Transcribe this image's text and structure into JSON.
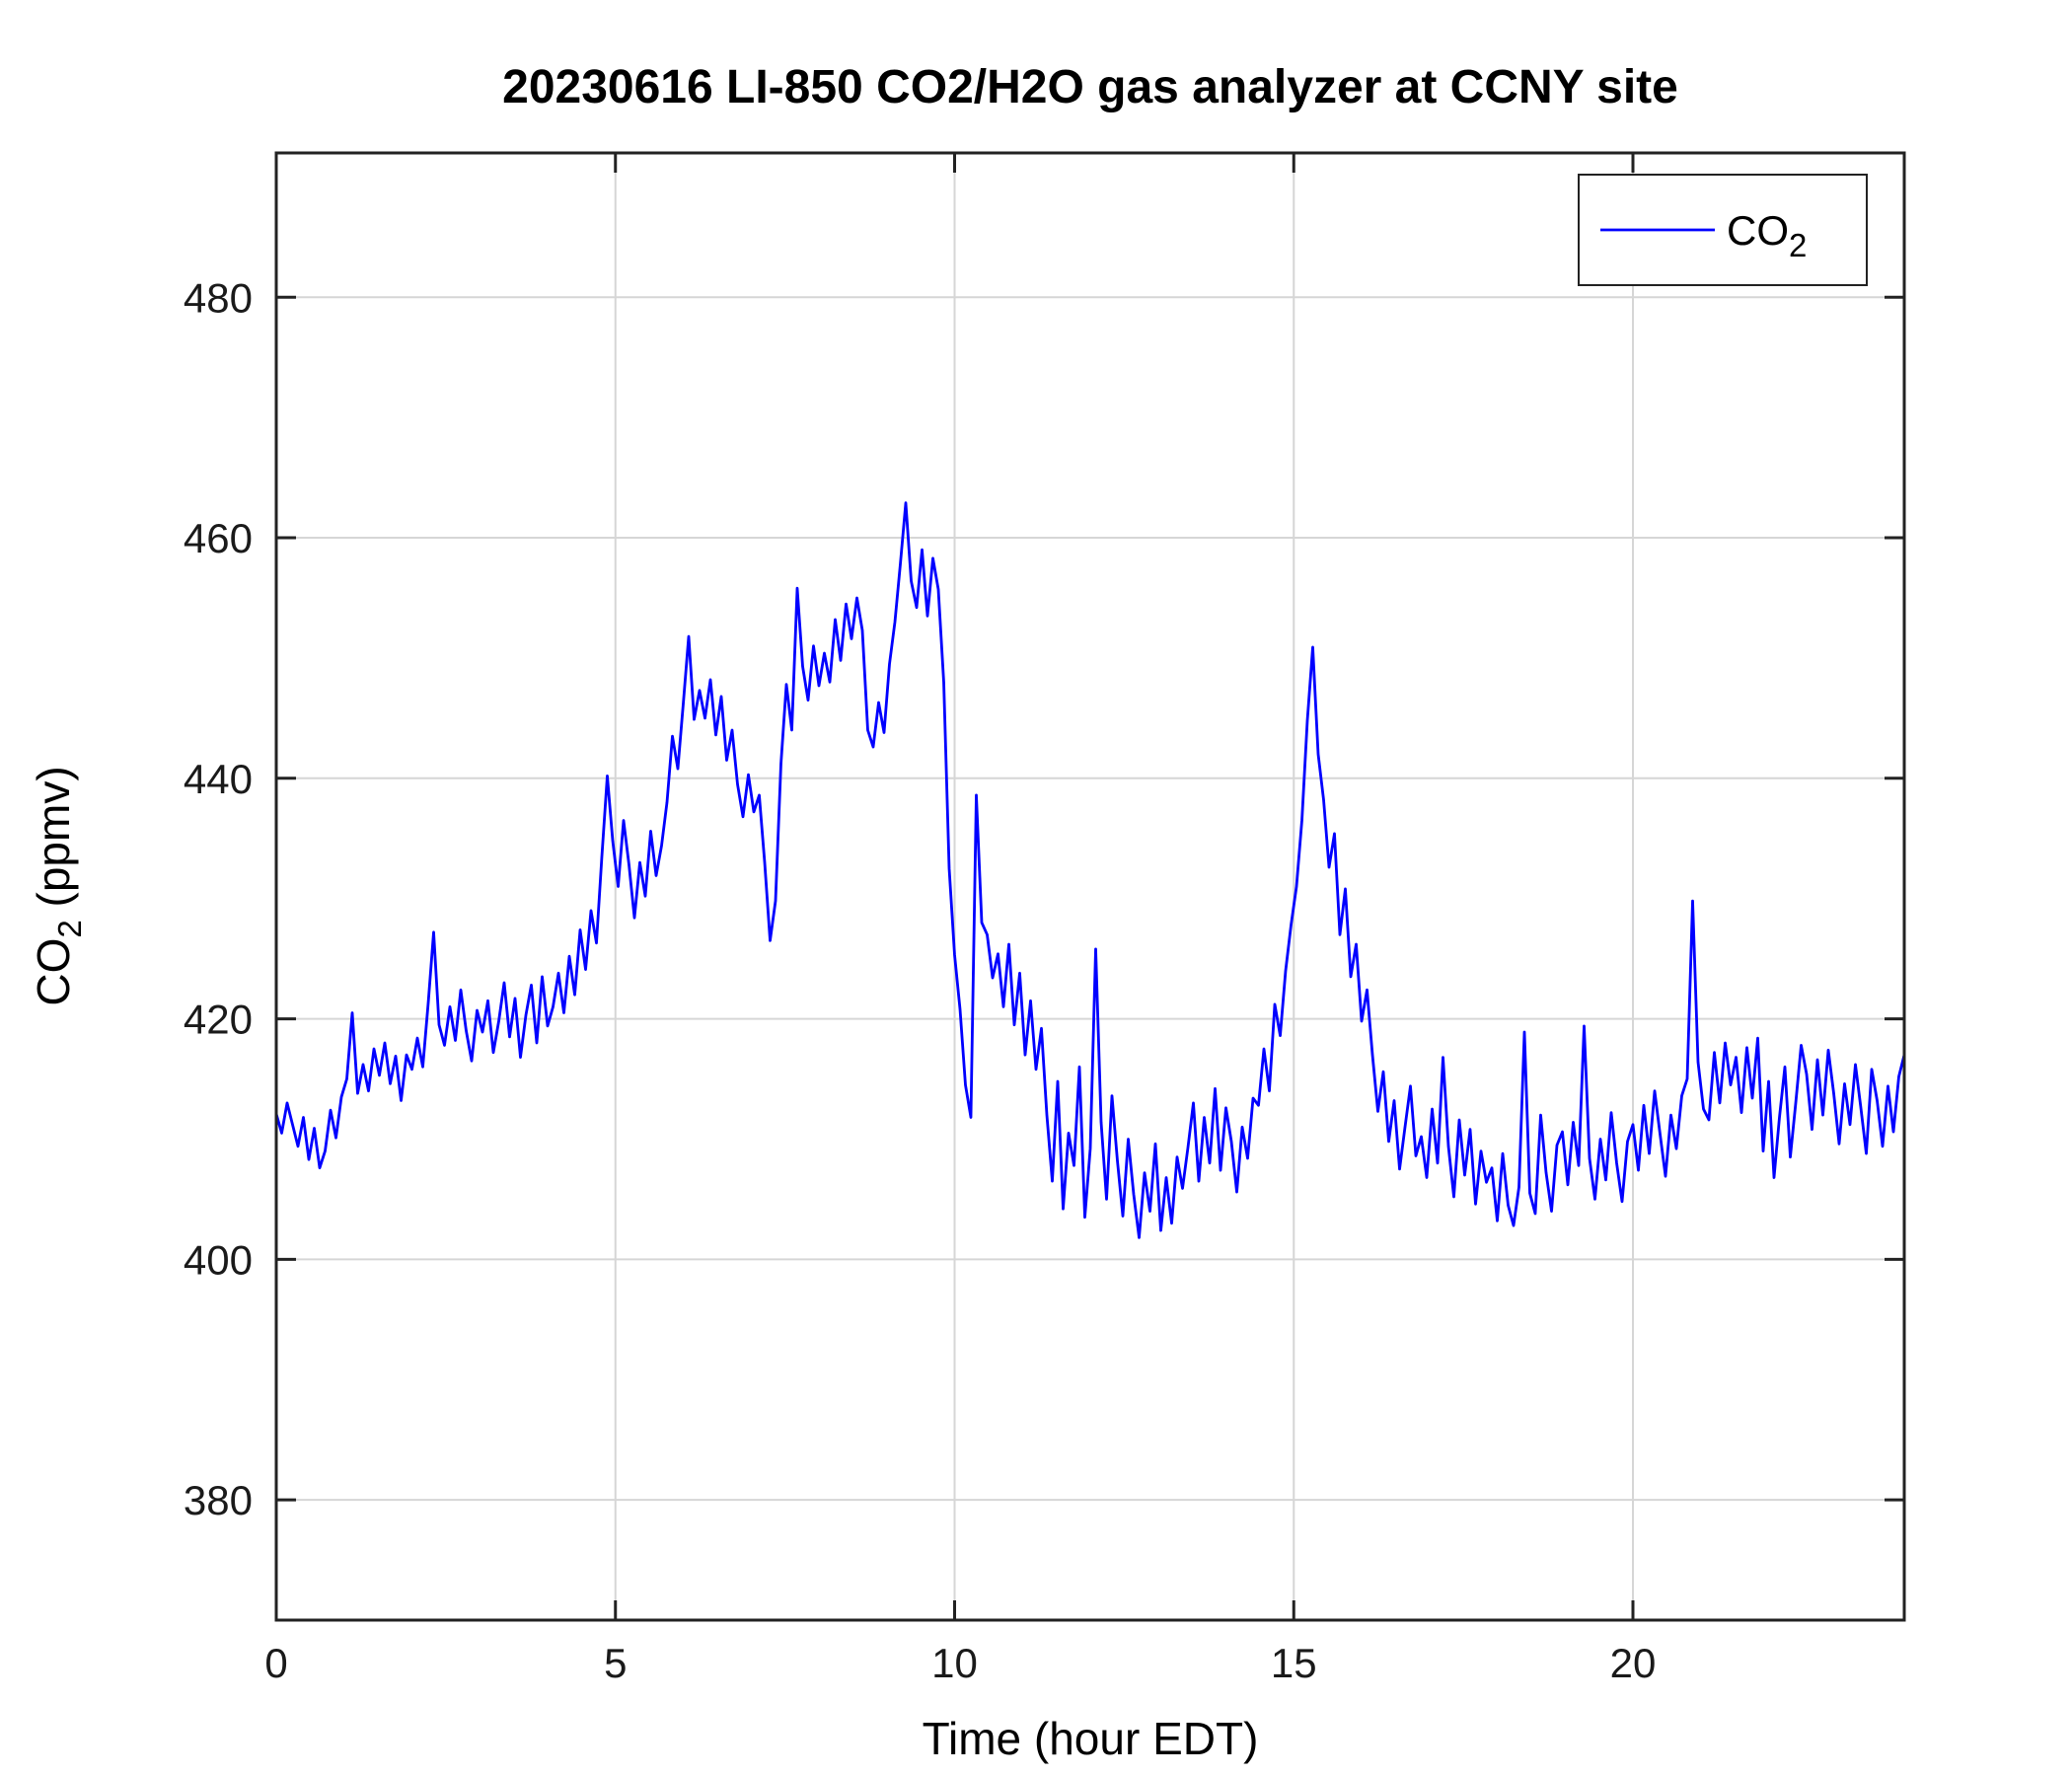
{
  "chart_data": {
    "type": "line",
    "title": "20230616 LI-850 CO2/H2O gas analyzer at CCNY site",
    "xlabel": "Time (hour EDT)",
    "ylabel_base": "CO",
    "ylabel_sub": "2",
    "ylabel_rest": " (ppmv)",
    "legend": {
      "entry_base": "CO",
      "entry_sub": "2",
      "position": "top-right"
    },
    "line_color": "#0000FF",
    "grid": true,
    "grid_color": "#d6d6d6",
    "axis_color": "#222222",
    "xlim": [
      0,
      24
    ],
    "ylim": [
      370,
      492
    ],
    "xticks": [
      0,
      5,
      10,
      15,
      20
    ],
    "yticks": [
      380,
      400,
      420,
      440,
      460,
      480
    ],
    "x_units": "hour EDT",
    "y_units": "ppmv",
    "x_start": 0,
    "x_step": 0.08,
    "values": [
      412.1,
      410.5,
      413.0,
      411.2,
      409.4,
      411.8,
      408.3,
      410.9,
      407.6,
      409.0,
      412.4,
      410.1,
      413.5,
      415.0,
      420.5,
      413.8,
      416.2,
      414.0,
      417.5,
      415.3,
      418.0,
      414.6,
      416.9,
      413.2,
      417.0,
      415.8,
      418.4,
      416.0,
      421.3,
      427.2,
      419.5,
      417.8,
      421.0,
      418.2,
      422.4,
      419.0,
      416.5,
      420.7,
      418.9,
      421.5,
      417.2,
      419.8,
      423.0,
      418.5,
      421.7,
      416.8,
      420.3,
      422.8,
      418.0,
      423.5,
      419.4,
      421.0,
      423.8,
      420.5,
      425.2,
      422.0,
      427.4,
      424.1,
      429.0,
      426.3,
      433.5,
      440.2,
      434.8,
      431.0,
      436.5,
      432.8,
      428.4,
      433.0,
      430.2,
      435.6,
      431.9,
      434.4,
      438.0,
      443.5,
      440.8,
      446.2,
      451.8,
      444.9,
      447.3,
      445.0,
      448.2,
      443.6,
      446.8,
      441.5,
      444.0,
      439.5,
      436.8,
      440.3,
      437.2,
      438.6,
      433.0,
      426.5,
      429.8,
      441.2,
      447.8,
      444.0,
      455.8,
      449.3,
      446.5,
      451.0,
      447.7,
      450.4,
      448.0,
      453.2,
      449.8,
      454.5,
      451.6,
      455.0,
      452.3,
      444.0,
      442.6,
      446.3,
      443.8,
      449.5,
      453.0,
      457.8,
      462.9,
      456.4,
      454.2,
      459.0,
      453.5,
      458.3,
      455.7,
      448.0,
      432.5,
      425.3,
      420.8,
      414.5,
      411.8,
      438.6,
      428.0,
      427.0,
      423.4,
      425.4,
      421.0,
      426.2,
      419.5,
      423.8,
      417.0,
      421.5,
      415.8,
      419.2,
      412.0,
      406.5,
      414.8,
      404.2,
      410.5,
      407.8,
      416.0,
      403.5,
      409.2,
      425.8,
      411.4,
      405.0,
      413.6,
      408.2,
      403.6,
      410.0,
      405.4,
      401.8,
      407.2,
      404.0,
      409.6,
      402.4,
      406.8,
      403.0,
      408.5,
      405.9,
      409.3,
      413.0,
      406.5,
      411.8,
      408.0,
      414.2,
      407.4,
      412.6,
      409.8,
      405.6,
      411.0,
      408.4,
      413.4,
      412.8,
      417.5,
      414.0,
      421.2,
      418.6,
      424.0,
      427.8,
      431.0,
      436.5,
      444.8,
      450.9,
      442.0,
      438.2,
      432.6,
      435.4,
      427.0,
      430.8,
      423.5,
      426.2,
      419.8,
      422.4,
      417.0,
      412.3,
      415.6,
      409.8,
      413.2,
      407.5,
      411.0,
      414.4,
      408.6,
      410.2,
      406.8,
      412.5,
      408.0,
      416.8,
      409.4,
      405.2,
      411.6,
      407.0,
      410.8,
      404.6,
      409.0,
      406.4,
      407.6,
      403.2,
      408.8,
      404.5,
      402.8,
      406.0,
      418.9,
      405.5,
      403.8,
      412.0,
      407.2,
      404.0,
      409.5,
      410.6,
      406.2,
      411.4,
      407.8,
      419.4,
      408.4,
      405.0,
      410.0,
      406.6,
      412.2,
      408.0,
      404.8,
      409.8,
      411.2,
      407.4,
      412.8,
      408.8,
      414.0,
      410.4,
      406.9,
      412.0,
      409.2,
      413.6,
      415.0,
      429.8,
      416.4,
      412.5,
      411.6,
      417.2,
      413.0,
      418.0,
      414.5,
      416.8,
      412.2,
      417.6,
      413.4,
      418.4,
      409.0,
      414.8,
      406.8,
      411.8,
      416.0,
      408.5,
      413.0,
      417.8,
      415.4,
      410.8,
      416.6,
      412.0,
      417.4,
      413.8,
      409.6,
      414.6,
      411.2,
      416.2,
      412.6,
      408.8,
      415.8,
      413.2,
      409.4,
      414.4,
      410.6,
      415.2,
      417.0
    ]
  }
}
